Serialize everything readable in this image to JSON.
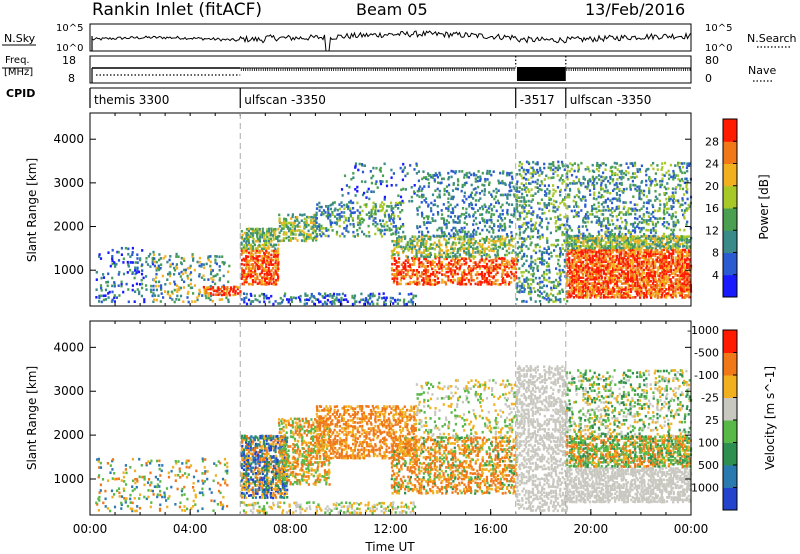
{
  "header": {
    "left": "Rankin Inlet (fitACF)",
    "center": "Beam 05",
    "right": "13/Feb/2016"
  },
  "top_panels": {
    "nsky": {
      "label": "N.Sky",
      "ticks": [
        "10^5",
        "10^0"
      ],
      "right_label": "N.Search",
      "right_ticks": [
        "10^5",
        "10^0"
      ]
    },
    "freq": {
      "label_line1": "Freq.",
      "label_line2": "[MHz]",
      "ticks": [
        "18",
        "8"
      ],
      "right_label": "Nave",
      "right_ticks": [
        "80",
        "0"
      ]
    },
    "cpid": {
      "label": "CPID",
      "segments": [
        {
          "label": "themis 3300",
          "start_h": 0,
          "end_h": 6
        },
        {
          "label": "ulfscan -3350",
          "start_h": 6,
          "end_h": 17
        },
        {
          "label": "-3517",
          "start_h": 17,
          "end_h": 19
        },
        {
          "label": "ulfscan -3350",
          "start_h": 19,
          "end_h": 24
        }
      ]
    }
  },
  "chart_data": [
    {
      "type": "heatmap",
      "xlabel": "",
      "ylabel": "Slant Range [km]",
      "xlim": [
        0,
        24
      ],
      "ylim": [
        180,
        4600
      ],
      "yticks": [
        1000,
        2000,
        3000,
        4000
      ],
      "colorbar": {
        "label": "Power [dB]",
        "ticks": [
          "4",
          "8",
          "12",
          "16",
          "20",
          "24",
          "28"
        ],
        "colors": [
          "#1a1aff",
          "#2a5bd0",
          "#3a8a8a",
          "#4aa050",
          "#a8c828",
          "#f0b020",
          "#f07818",
          "#ff1a00"
        ]
      }
    },
    {
      "type": "heatmap",
      "xlabel": "Time UT",
      "ylabel": "Slant Range [km]",
      "xlim": [
        0,
        24
      ],
      "ylim": [
        180,
        4600
      ],
      "yticks": [
        1000,
        2000,
        3000,
        4000
      ],
      "xticks": [
        "00:00",
        "04:00",
        "08:00",
        "12:00",
        "16:00",
        "20:00",
        "00:00"
      ],
      "colorbar": {
        "label": "Velocity [m s^-1]",
        "ticks": [
          "1000",
          "500",
          "100",
          "25",
          "-25",
          "-100",
          "-500",
          "-1000"
        ],
        "colors": [
          "#2244cc",
          "#2a7ab0",
          "#2f8f50",
          "#58b848",
          "#c8c8c0",
          "#f0b020",
          "#f07818",
          "#ff1a00"
        ]
      }
    }
  ]
}
